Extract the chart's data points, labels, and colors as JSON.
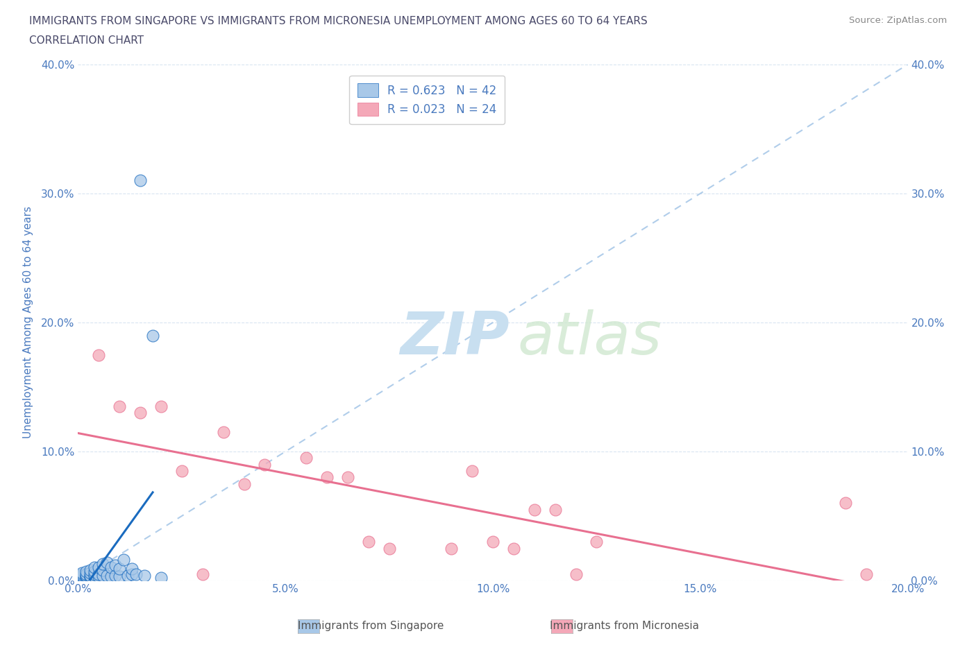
{
  "title_line1": "IMMIGRANTS FROM SINGAPORE VS IMMIGRANTS FROM MICRONESIA UNEMPLOYMENT AMONG AGES 60 TO 64 YEARS",
  "title_line2": "CORRELATION CHART",
  "source_text": "Source: ZipAtlas.com",
  "ylabel": "Unemployment Among Ages 60 to 64 years",
  "xlim": [
    0.0,
    0.2
  ],
  "ylim": [
    0.0,
    0.4
  ],
  "xticks": [
    0.0,
    0.05,
    0.1,
    0.15,
    0.2
  ],
  "yticks": [
    0.0,
    0.1,
    0.2,
    0.3,
    0.4
  ],
  "singapore_color": "#a8c8e8",
  "micronesia_color": "#f4a8b8",
  "singapore_line_color": "#1a6bbf",
  "micronesia_line_color": "#e87090",
  "diagonal_color": "#a8c8e8",
  "R_singapore": 0.623,
  "N_singapore": 42,
  "R_micronesia": 0.023,
  "N_micronesia": 24,
  "legend_label_singapore": "Immigrants from Singapore",
  "legend_label_micronesia": "Immigrants from Micronesia",
  "singapore_x": [
    0.001,
    0.001,
    0.001,
    0.001,
    0.001,
    0.002,
    0.002,
    0.002,
    0.002,
    0.002,
    0.003,
    0.003,
    0.003,
    0.003,
    0.003,
    0.004,
    0.004,
    0.004,
    0.004,
    0.005,
    0.005,
    0.005,
    0.006,
    0.006,
    0.006,
    0.007,
    0.007,
    0.008,
    0.008,
    0.009,
    0.009,
    0.01,
    0.01,
    0.011,
    0.012,
    0.013,
    0.013,
    0.014,
    0.015,
    0.016,
    0.018,
    0.02
  ],
  "singapore_y": [
    0.002,
    0.003,
    0.004,
    0.005,
    0.006,
    0.002,
    0.003,
    0.004,
    0.005,
    0.007,
    0.002,
    0.003,
    0.004,
    0.006,
    0.008,
    0.003,
    0.005,
    0.007,
    0.01,
    0.003,
    0.005,
    0.01,
    0.004,
    0.008,
    0.013,
    0.004,
    0.014,
    0.003,
    0.01,
    0.004,
    0.012,
    0.003,
    0.009,
    0.016,
    0.004,
    0.005,
    0.009,
    0.005,
    0.31,
    0.004,
    0.19,
    0.002
  ],
  "micronesia_x": [
    0.005,
    0.01,
    0.015,
    0.02,
    0.025,
    0.03,
    0.035,
    0.04,
    0.045,
    0.055,
    0.06,
    0.065,
    0.07,
    0.075,
    0.09,
    0.095,
    0.1,
    0.105,
    0.11,
    0.115,
    0.12,
    0.125,
    0.185,
    0.19
  ],
  "micronesia_y": [
    0.175,
    0.135,
    0.13,
    0.135,
    0.085,
    0.005,
    0.115,
    0.075,
    0.09,
    0.095,
    0.08,
    0.08,
    0.03,
    0.025,
    0.025,
    0.085,
    0.03,
    0.025,
    0.055,
    0.055,
    0.005,
    0.03,
    0.06,
    0.005
  ],
  "watermark_zip": "ZIP",
  "watermark_atlas": "atlas",
  "watermark_color": "#d0e8f8",
  "title_color": "#4a4a6a",
  "axis_label_color": "#4a7abf",
  "tick_color": "#4a7abf",
  "grid_color": "#d8e4f0",
  "background_color": "#ffffff"
}
